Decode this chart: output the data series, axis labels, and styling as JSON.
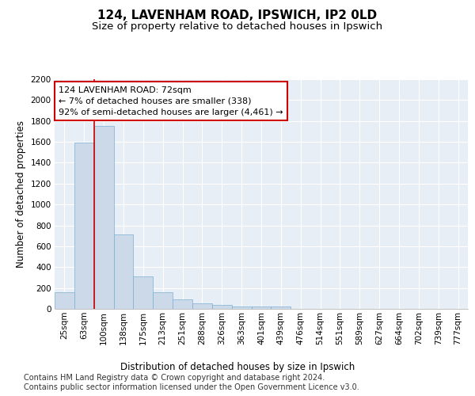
{
  "title": "124, LAVENHAM ROAD, IPSWICH, IP2 0LD",
  "subtitle": "Size of property relative to detached houses in Ipswich",
  "xlabel": "Distribution of detached houses by size in Ipswich",
  "ylabel": "Number of detached properties",
  "categories": [
    "25sqm",
    "63sqm",
    "100sqm",
    "138sqm",
    "175sqm",
    "213sqm",
    "251sqm",
    "288sqm",
    "326sqm",
    "363sqm",
    "401sqm",
    "439sqm",
    "476sqm",
    "514sqm",
    "551sqm",
    "589sqm",
    "627sqm",
    "664sqm",
    "702sqm",
    "739sqm",
    "777sqm"
  ],
  "bar_values": [
    160,
    1590,
    1750,
    710,
    310,
    160,
    90,
    55,
    35,
    25,
    20,
    20,
    0,
    0,
    0,
    0,
    0,
    0,
    0,
    0,
    0
  ],
  "bar_color": "#ccd9e8",
  "bar_edge_color": "#7bafd4",
  "bg_color": "#e8eef5",
  "grid_color": "#ffffff",
  "red_line_x": 1.5,
  "annotation_line1": "124 LAVENHAM ROAD: 72sqm",
  "annotation_line2": "← 7% of detached houses are smaller (338)",
  "annotation_line3": "92% of semi-detached houses are larger (4,461) →",
  "annotation_box_color": "#ffffff",
  "annotation_box_edge": "#cc0000",
  "ylim": [
    0,
    2200
  ],
  "yticks": [
    0,
    200,
    400,
    600,
    800,
    1000,
    1200,
    1400,
    1600,
    1800,
    2000,
    2200
  ],
  "footer_text": "Contains HM Land Registry data © Crown copyright and database right 2024.\nContains public sector information licensed under the Open Government Licence v3.0.",
  "title_fontsize": 11,
  "subtitle_fontsize": 9.5,
  "axis_label_fontsize": 8.5,
  "tick_fontsize": 7.5,
  "annotation_fontsize": 8,
  "footer_fontsize": 7
}
